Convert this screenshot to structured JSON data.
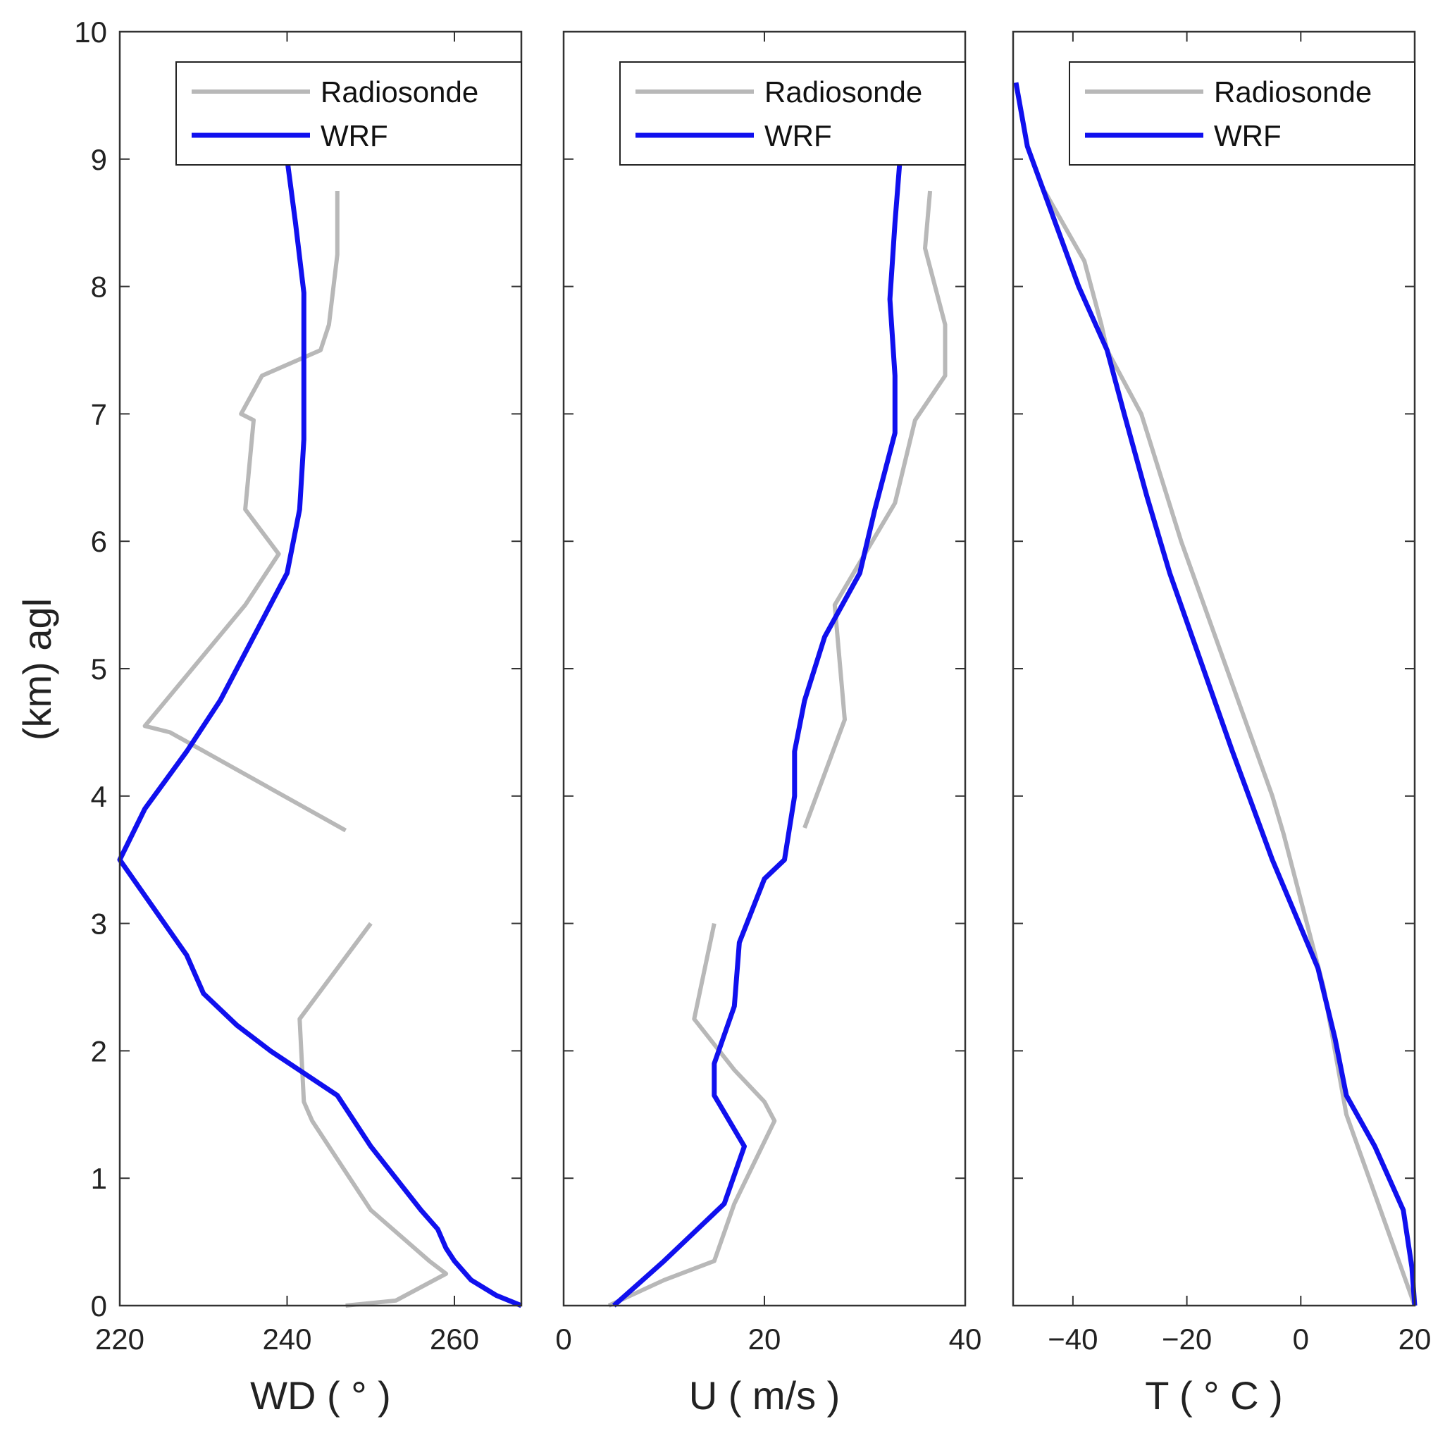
{
  "ylabel": "(km) agl",
  "y_ticks": [
    0,
    1,
    2,
    3,
    4,
    5,
    6,
    7,
    8,
    9,
    10
  ],
  "ylim": [
    0,
    10
  ],
  "colors": {
    "radiosonde": "#b8b8b8",
    "wrf": "#1010ee",
    "frame": "#333333"
  },
  "chart_data": [
    {
      "type": "line",
      "name": "wind-direction",
      "xlabel": "WD ( ° )",
      "xlim": [
        220,
        268
      ],
      "x_ticks": [
        220,
        240,
        260
      ],
      "ylim": [
        0,
        10
      ],
      "legend": {
        "position": "top-right",
        "entries": [
          "Radiosonde",
          "WRF"
        ]
      },
      "series": [
        {
          "name": "Radiosonde",
          "segments": [
            [
              [
                247,
                0.0
              ],
              [
                253,
                0.04
              ],
              [
                259,
                0.25
              ],
              [
                257,
                0.35
              ],
              [
                250,
                0.75
              ],
              [
                247,
                1.05
              ],
              [
                243,
                1.45
              ],
              [
                242,
                1.6
              ],
              [
                241.5,
                2.25
              ],
              [
                250,
                3.0
              ]
            ],
            [
              [
                247,
                3.73
              ],
              [
                226,
                4.5
              ],
              [
                223,
                4.55
              ],
              [
                235,
                5.5
              ],
              [
                239,
                5.9
              ],
              [
                235,
                6.25
              ],
              [
                236,
                6.95
              ],
              [
                234.5,
                7.0
              ],
              [
                237,
                7.3
              ],
              [
                244,
                7.5
              ],
              [
                245,
                7.7
              ],
              [
                246,
                8.25
              ],
              [
                246,
                8.75
              ]
            ]
          ]
        },
        {
          "name": "WRF",
          "segments": [
            [
              [
                268,
                0.0
              ],
              [
                265,
                0.08
              ],
              [
                262,
                0.2
              ],
              [
                260,
                0.35
              ],
              [
                259,
                0.45
              ],
              [
                258,
                0.6
              ],
              [
                256,
                0.75
              ],
              [
                250,
                1.25
              ],
              [
                246,
                1.65
              ],
              [
                238,
                2.0
              ],
              [
                234,
                2.2
              ],
              [
                230,
                2.45
              ],
              [
                228,
                2.75
              ],
              [
                220,
                3.5
              ],
              [
                223,
                3.9
              ],
              [
                228,
                4.35
              ],
              [
                232,
                4.75
              ],
              [
                236,
                5.25
              ],
              [
                240,
                5.75
              ],
              [
                241.5,
                6.25
              ],
              [
                242,
                6.8
              ],
              [
                242,
                7.45
              ],
              [
                242,
                7.95
              ],
              [
                241,
                8.5
              ],
              [
                240,
                9.0
              ]
            ]
          ]
        }
      ]
    },
    {
      "type": "line",
      "name": "wind-speed",
      "xlabel": "U ( m/s )",
      "xlim": [
        0,
        40
      ],
      "x_ticks": [
        0,
        20,
        40
      ],
      "ylim": [
        0,
        10
      ],
      "legend": {
        "position": "top-right",
        "entries": [
          "Radiosonde",
          "WRF"
        ]
      },
      "series": [
        {
          "name": "Radiosonde",
          "segments": [
            [
              [
                4.5,
                0.0
              ],
              [
                10,
                0.2
              ],
              [
                15,
                0.35
              ],
              [
                17,
                0.8
              ],
              [
                21,
                1.45
              ],
              [
                20,
                1.6
              ],
              [
                17,
                1.85
              ],
              [
                13,
                2.25
              ],
              [
                15,
                3.0
              ]
            ],
            [
              [
                24,
                3.75
              ],
              [
                28,
                4.6
              ],
              [
                27,
                5.5
              ],
              [
                30,
                5.9
              ],
              [
                33,
                6.3
              ],
              [
                35,
                6.95
              ],
              [
                38,
                7.3
              ],
              [
                38,
                7.7
              ],
              [
                36,
                8.3
              ],
              [
                36.5,
                8.75
              ]
            ]
          ]
        },
        {
          "name": "WRF",
          "segments": [
            [
              [
                5,
                0.0
              ],
              [
                10,
                0.35
              ],
              [
                14,
                0.65
              ],
              [
                16,
                0.8
              ],
              [
                18,
                1.25
              ],
              [
                15,
                1.65
              ],
              [
                15,
                1.9
              ],
              [
                17,
                2.35
              ],
              [
                17.5,
                2.85
              ],
              [
                20,
                3.35
              ],
              [
                22,
                3.5
              ],
              [
                23,
                4.0
              ],
              [
                23,
                4.35
              ],
              [
                24,
                4.75
              ],
              [
                26,
                5.25
              ],
              [
                29.5,
                5.75
              ],
              [
                31,
                6.25
              ],
              [
                33,
                6.85
              ],
              [
                33,
                7.3
              ],
              [
                32.5,
                7.9
              ],
              [
                33,
                8.5
              ],
              [
                33.5,
                9.0
              ]
            ]
          ]
        }
      ]
    },
    {
      "type": "line",
      "name": "temperature",
      "xlabel": "T ( ° C )",
      "xlim": [
        -50.5,
        20
      ],
      "x_ticks": [
        -40,
        -20,
        0,
        20
      ],
      "ylim": [
        0,
        10
      ],
      "legend": {
        "position": "top-right",
        "entries": [
          "Radiosonde",
          "WRF"
        ]
      },
      "series": [
        {
          "name": "Radiosonde",
          "segments": [
            [
              [
                20,
                0.0
              ],
              [
                8,
                1.5
              ],
              [
                4,
                2.5
              ],
              [
                -3,
                3.7
              ],
              [
                -5,
                4.0
              ],
              [
                -21,
                6.0
              ],
              [
                -28,
                7.0
              ],
              [
                -34,
                7.5
              ],
              [
                -35,
                7.7
              ],
              [
                -38,
                8.2
              ],
              [
                -45,
                8.75
              ]
            ]
          ]
        },
        {
          "name": "WRF",
          "segments": [
            [
              [
                20,
                0.0
              ],
              [
                19.5,
                0.3
              ],
              [
                18,
                0.75
              ],
              [
                13,
                1.25
              ],
              [
                8,
                1.65
              ],
              [
                6,
                2.1
              ],
              [
                3,
                2.65
              ],
              [
                -5,
                3.5
              ],
              [
                -12,
                4.35
              ],
              [
                -23,
                5.75
              ],
              [
                -27,
                6.35
              ],
              [
                -31,
                7.0
              ],
              [
                -34,
                7.5
              ],
              [
                -39,
                8.0
              ],
              [
                -48,
                9.1
              ],
              [
                -50,
                9.6
              ]
            ]
          ]
        }
      ]
    }
  ]
}
